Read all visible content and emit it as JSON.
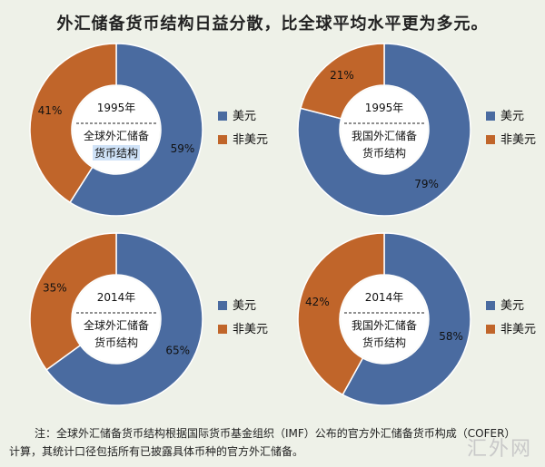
{
  "title": "外汇储备货币结构日益分散，比全球平均水平更为多元。",
  "colors": {
    "usd": "#4a6ba0",
    "non_usd": "#c0652a",
    "center": "#ffffff",
    "highlight": "#cfe2f7"
  },
  "chart_data": [
    {
      "type": "pie",
      "year": "1995年",
      "label_line1": "全球外汇储备",
      "label_line2": "货币结构",
      "slices": [
        {
          "name": "美元",
          "value": 59,
          "label": "59%"
        },
        {
          "name": "非美元",
          "value": 41,
          "label": "41%"
        }
      ]
    },
    {
      "type": "pie",
      "year": "1995年",
      "label_line1": "我国外汇储备",
      "label_line2": "货币结构",
      "slices": [
        {
          "name": "美元",
          "value": 79,
          "label": "79%"
        },
        {
          "name": "非美元",
          "value": 21,
          "label": "21%"
        }
      ]
    },
    {
      "type": "pie",
      "year": "2014年",
      "label_line1": "全球外汇储备",
      "label_line2": "货币结构",
      "slices": [
        {
          "name": "美元",
          "value": 65,
          "label": "65%"
        },
        {
          "name": "非美元",
          "value": 35,
          "label": "35%"
        }
      ]
    },
    {
      "type": "pie",
      "year": "2014年",
      "label_line1": "我国外汇储备",
      "label_line2": "货币结构",
      "slices": [
        {
          "name": "美元",
          "value": 58,
          "label": "58%"
        },
        {
          "name": "非美元",
          "value": 42,
          "label": "42%"
        }
      ]
    }
  ],
  "note": {
    "line1": "注：全球外汇储备货币结构根据国际货币基金组织（IMF）公布的官方外汇储备货币构成（COFER）",
    "line2": "计算，其统计口径包括所有已披露具体币种的官方外汇储备。"
  },
  "watermark": "汇外网"
}
